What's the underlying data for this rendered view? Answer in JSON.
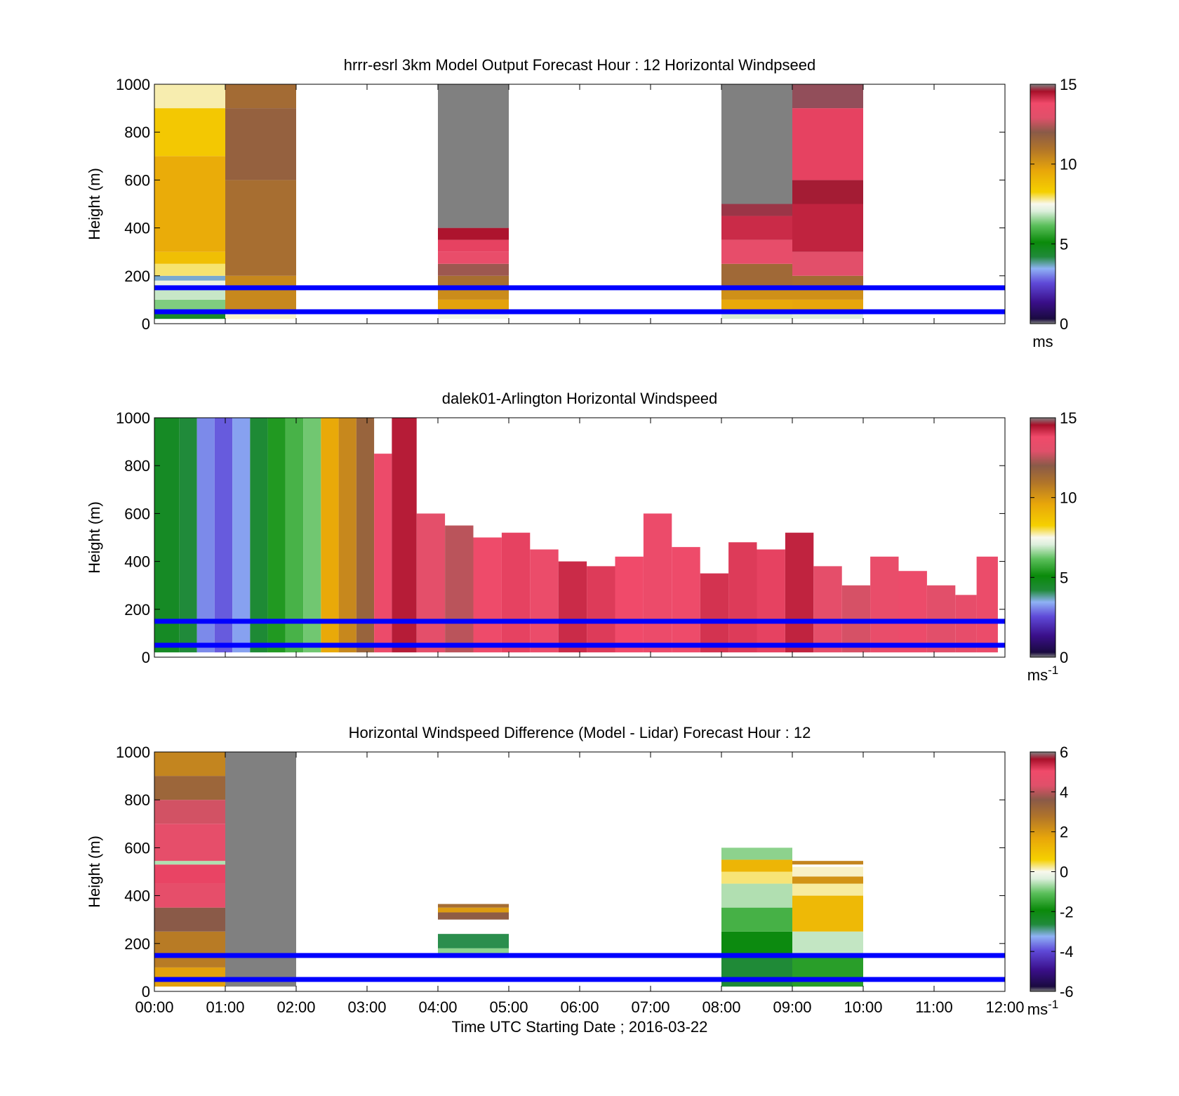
{
  "figure": {
    "xlabel": "Time UTC  Starting Date ; 2016-03-22",
    "x_ticks": [
      "00:00",
      "01:00",
      "02:00",
      "03:00",
      "04:00",
      "05:00",
      "06:00",
      "07:00",
      "08:00",
      "09:00",
      "10:00",
      "11:00",
      "12:00"
    ],
    "guide_lines_height_m": [
      50,
      150
    ],
    "guide_line_color": "#0000ff",
    "nodata_color": "#808080"
  },
  "chart_data": [
    {
      "type": "heatmap",
      "title": "hrrr-esrl 3km Model Output   Forecast Hour : 12 Horizontal Windpseed",
      "ylabel": "Height (m)",
      "ylim": [
        0,
        1000
      ],
      "y_ticks": [
        "0",
        "200",
        "400",
        "600",
        "800",
        "1000"
      ],
      "xlim_hours": [
        0,
        12
      ],
      "colorbar": {
        "range": [
          0,
          15
        ],
        "ticks": [
          "0",
          "5",
          "10",
          "15"
        ],
        "unit": "ms",
        "unit_sup": ""
      },
      "columns": [
        {
          "start_hour": 0,
          "end_hour": 1,
          "cells": [
            {
              "from": 20,
              "to": 40,
              "value": 4.5
            },
            {
              "from": 40,
              "to": 60,
              "value": 5.8
            },
            {
              "from": 60,
              "to": 100,
              "value": 6.4
            },
            {
              "from": 100,
              "to": 150,
              "value": 6.9
            },
            {
              "from": 150,
              "to": 180,
              "value": 7.3
            },
            {
              "from": 180,
              "to": 200,
              "value": 3.6
            },
            {
              "from": 200,
              "to": 250,
              "value": 7.9
            },
            {
              "from": 250,
              "to": 300,
              "value": 8.8
            },
            {
              "from": 300,
              "to": 700,
              "value": 9.4
            },
            {
              "from": 700,
              "to": 900,
              "value": 8.5
            },
            {
              "from": 900,
              "to": 1000,
              "value": 7.7
            }
          ]
        },
        {
          "start_hour": 1,
          "end_hour": 2,
          "cells": [
            {
              "from": 20,
              "to": 60,
              "value": 7.6
            },
            {
              "from": 60,
              "to": 200,
              "value": 10.4
            },
            {
              "from": 200,
              "to": 600,
              "value": 11.2
            },
            {
              "from": 600,
              "to": 900,
              "value": 11.7
            },
            {
              "from": 900,
              "to": 1000,
              "value": 11.3
            }
          ]
        },
        {
          "start_hour": 4,
          "end_hour": 5,
          "cells": [
            {
              "from": 20,
              "to": 50,
              "value": 7.4
            },
            {
              "from": 50,
              "to": 100,
              "value": 9.7
            },
            {
              "from": 100,
              "to": 150,
              "value": 10.3
            },
            {
              "from": 150,
              "to": 200,
              "value": 11.2
            },
            {
              "from": 200,
              "to": 250,
              "value": 12.2
            },
            {
              "from": 250,
              "to": 300,
              "value": 13.4
            },
            {
              "from": 300,
              "to": 350,
              "value": 13.9
            },
            {
              "from": 350,
              "to": 400,
              "value": 14.5
            },
            {
              "from": 400,
              "to": 1000,
              "value": null
            }
          ]
        },
        {
          "start_hour": 8,
          "end_hour": 9,
          "cells": [
            {
              "from": 20,
              "to": 50,
              "value": 7.0
            },
            {
              "from": 50,
              "to": 100,
              "value": 9.5
            },
            {
              "from": 100,
              "to": 150,
              "value": 10.2
            },
            {
              "from": 150,
              "to": 250,
              "value": 11.4
            },
            {
              "from": 250,
              "to": 350,
              "value": 13.3
            },
            {
              "from": 350,
              "to": 450,
              "value": 14.2
            },
            {
              "from": 450,
              "to": 500,
              "value": 14.7
            },
            {
              "from": 500,
              "to": 1000,
              "value": null
            }
          ]
        },
        {
          "start_hour": 9,
          "end_hour": 10,
          "cells": [
            {
              "from": 20,
              "to": 50,
              "value": 7.1
            },
            {
              "from": 50,
              "to": 100,
              "value": 9.6
            },
            {
              "from": 100,
              "to": 150,
              "value": 10.2
            },
            {
              "from": 150,
              "to": 200,
              "value": 11.3
            },
            {
              "from": 200,
              "to": 300,
              "value": 13.0
            },
            {
              "from": 300,
              "to": 500,
              "value": 14.3
            },
            {
              "from": 500,
              "to": 600,
              "value": 14.6
            },
            {
              "from": 600,
              "to": 900,
              "value": 13.9
            },
            {
              "from": 900,
              "to": 1000,
              "value": 14.8
            }
          ]
        }
      ]
    },
    {
      "type": "heatmap",
      "title": "dalek01-Arlington  Horizontal Windspeed",
      "ylabel": "Height (m)",
      "ylim": [
        0,
        1000
      ],
      "y_ticks": [
        "0",
        "200",
        "400",
        "600",
        "800",
        "1000"
      ],
      "xlim_hours": [
        0,
        12
      ],
      "colorbar": {
        "range": [
          0,
          15
        ],
        "ticks": [
          "0",
          "5",
          "10",
          "15"
        ],
        "unit": "ms",
        "unit_sup": "-1"
      },
      "columns": [
        {
          "start_hour": 0.0,
          "end_hour": 0.35,
          "cells": [
            {
              "from": 20,
              "to": 1000,
              "value": 4.6
            }
          ]
        },
        {
          "start_hour": 0.35,
          "end_hour": 0.6,
          "cells": [
            {
              "from": 20,
              "to": 1000,
              "value": 4.2
            }
          ]
        },
        {
          "start_hour": 0.6,
          "end_hour": 0.85,
          "cells": [
            {
              "from": 20,
              "to": 1000,
              "value": 3.1
            }
          ]
        },
        {
          "start_hour": 0.85,
          "end_hour": 1.1,
          "cells": [
            {
              "from": 20,
              "to": 1000,
              "value": 2.7
            }
          ]
        },
        {
          "start_hour": 1.1,
          "end_hour": 1.35,
          "cells": [
            {
              "from": 20,
              "to": 1000,
              "value": 3.3
            }
          ]
        },
        {
          "start_hour": 1.35,
          "end_hour": 1.6,
          "cells": [
            {
              "from": 20,
              "to": 1000,
              "value": 4.3
            }
          ]
        },
        {
          "start_hour": 1.6,
          "end_hour": 1.85,
          "cells": [
            {
              "from": 20,
              "to": 1000,
              "value": 5.4
            }
          ]
        },
        {
          "start_hour": 1.85,
          "end_hour": 2.1,
          "cells": [
            {
              "from": 20,
              "to": 1000,
              "value": 5.9
            }
          ]
        },
        {
          "start_hour": 2.1,
          "end_hour": 2.35,
          "cells": [
            {
              "from": 20,
              "to": 1000,
              "value": 6.3
            }
          ]
        },
        {
          "start_hour": 2.35,
          "end_hour": 2.6,
          "cells": [
            {
              "from": 20,
              "to": 1000,
              "value": 9.5
            }
          ]
        },
        {
          "start_hour": 2.6,
          "end_hour": 2.85,
          "cells": [
            {
              "from": 20,
              "to": 1000,
              "value": 10.4
            }
          ]
        },
        {
          "start_hour": 2.85,
          "end_hour": 3.1,
          "cells": [
            {
              "from": 20,
              "to": 1000,
              "value": 11.6
            }
          ]
        },
        {
          "start_hour": 3.1,
          "end_hour": 3.35,
          "cells": [
            {
              "from": 20,
              "to": 850,
              "value": 13.6
            }
          ]
        },
        {
          "start_hour": 3.35,
          "end_hour": 3.7,
          "cells": [
            {
              "from": 20,
              "to": 1000,
              "value": 14.4
            }
          ]
        },
        {
          "start_hour": 3.7,
          "end_hour": 4.1,
          "cells": [
            {
              "from": 20,
              "to": 600,
              "value": 13.1
            }
          ]
        },
        {
          "start_hour": 4.1,
          "end_hour": 4.5,
          "cells": [
            {
              "from": 20,
              "to": 550,
              "value": 12.5
            }
          ]
        },
        {
          "start_hour": 4.5,
          "end_hour": 4.9,
          "cells": [
            {
              "from": 20,
              "to": 500,
              "value": 13.7
            }
          ]
        },
        {
          "start_hour": 4.9,
          "end_hour": 5.3,
          "cells": [
            {
              "from": 20,
              "to": 520,
              "value": 13.9
            }
          ]
        },
        {
          "start_hour": 5.3,
          "end_hour": 5.7,
          "cells": [
            {
              "from": 20,
              "to": 450,
              "value": 13.5
            }
          ]
        },
        {
          "start_hour": 5.7,
          "end_hour": 6.1,
          "cells": [
            {
              "from": 20,
              "to": 400,
              "value": 14.2
            }
          ]
        },
        {
          "start_hour": 6.1,
          "end_hour": 6.5,
          "cells": [
            {
              "from": 20,
              "to": 380,
              "value": 14.0
            }
          ]
        },
        {
          "start_hour": 6.5,
          "end_hour": 6.9,
          "cells": [
            {
              "from": 20,
              "to": 420,
              "value": 13.8
            }
          ]
        },
        {
          "start_hour": 6.9,
          "end_hour": 7.3,
          "cells": [
            {
              "from": 20,
              "to": 600,
              "value": 13.6
            }
          ]
        },
        {
          "start_hour": 7.3,
          "end_hour": 7.7,
          "cells": [
            {
              "from": 20,
              "to": 460,
              "value": 13.7
            }
          ]
        },
        {
          "start_hour": 7.7,
          "end_hour": 8.1,
          "cells": [
            {
              "from": 20,
              "to": 350,
              "value": 14.1
            }
          ]
        },
        {
          "start_hour": 8.1,
          "end_hour": 8.5,
          "cells": [
            {
              "from": 20,
              "to": 480,
              "value": 14.0
            }
          ]
        },
        {
          "start_hour": 8.5,
          "end_hour": 8.9,
          "cells": [
            {
              "from": 20,
              "to": 450,
              "value": 13.9
            }
          ]
        },
        {
          "start_hour": 8.9,
          "end_hour": 9.3,
          "cells": [
            {
              "from": 20,
              "to": 520,
              "value": 14.3
            }
          ]
        },
        {
          "start_hour": 9.3,
          "end_hour": 9.7,
          "cells": [
            {
              "from": 20,
              "to": 380,
              "value": 13.2
            }
          ]
        },
        {
          "start_hour": 9.7,
          "end_hour": 10.1,
          "cells": [
            {
              "from": 20,
              "to": 300,
              "value": 12.8
            }
          ]
        },
        {
          "start_hour": 10.1,
          "end_hour": 10.5,
          "cells": [
            {
              "from": 20,
              "to": 420,
              "value": 13.4
            }
          ]
        },
        {
          "start_hour": 10.5,
          "end_hour": 10.9,
          "cells": [
            {
              "from": 20,
              "to": 360,
              "value": 13.6
            }
          ]
        },
        {
          "start_hour": 10.9,
          "end_hour": 11.3,
          "cells": [
            {
              "from": 20,
              "to": 300,
              "value": 13.0
            }
          ]
        },
        {
          "start_hour": 11.3,
          "end_hour": 11.6,
          "cells": [
            {
              "from": 20,
              "to": 260,
              "value": 13.3
            }
          ]
        },
        {
          "start_hour": 11.6,
          "end_hour": 11.9,
          "cells": [
            {
              "from": 20,
              "to": 420,
              "value": 13.5
            }
          ]
        }
      ]
    },
    {
      "type": "heatmap",
      "title": "Horizontal Windspeed Difference (Model - Lidar) Forecast Hour : 12",
      "ylabel": "Height (m)",
      "ylim": [
        0,
        1000
      ],
      "y_ticks": [
        "0",
        "200",
        "400",
        "600",
        "800",
        "1000"
      ],
      "xlim_hours": [
        0,
        12
      ],
      "colorbar": {
        "range": [
          -6,
          6
        ],
        "ticks": [
          "-6",
          "-4",
          "-2",
          "0",
          "2",
          "4",
          "6"
        ],
        "unit": "ms",
        "unit_sup": "-1"
      },
      "columns": [
        {
          "start_hour": 0,
          "end_hour": 1,
          "cells": [
            {
              "from": 20,
              "to": 100,
              "value": 1.8
            },
            {
              "from": 100,
              "to": 250,
              "value": 2.6
            },
            {
              "from": 250,
              "to": 350,
              "value": 3.6
            },
            {
              "from": 350,
              "to": 450,
              "value": 4.6
            },
            {
              "from": 450,
              "to": 530,
              "value": 5.1
            },
            {
              "from": 530,
              "to": 545,
              "value": -0.6
            },
            {
              "from": 545,
              "to": 700,
              "value": 4.6
            },
            {
              "from": 700,
              "to": 800,
              "value": 4.2
            },
            {
              "from": 800,
              "to": 900,
              "value": 3.2
            },
            {
              "from": 900,
              "to": 1000,
              "value": 2.4
            }
          ]
        },
        {
          "start_hour": 1,
          "end_hour": 2,
          "cells": [
            {
              "from": 20,
              "to": 1000,
              "value": null
            }
          ]
        },
        {
          "start_hour": 4,
          "end_hour": 5,
          "cells": [
            {
              "from": 140,
              "to": 180,
              "value": -0.8
            },
            {
              "from": 180,
              "to": 240,
              "value": -2.7
            },
            {
              "from": 300,
              "to": 330,
              "value": 3.5
            },
            {
              "from": 330,
              "to": 350,
              "value": 1.9
            },
            {
              "from": 350,
              "to": 365,
              "value": 3.0
            }
          ]
        },
        {
          "start_hour": 8,
          "end_hour": 9,
          "cells": [
            {
              "from": 20,
              "to": 150,
              "value": -2.6
            },
            {
              "from": 150,
              "to": 250,
              "value": -2.0
            },
            {
              "from": 250,
              "to": 350,
              "value": -1.3
            },
            {
              "from": 350,
              "to": 450,
              "value": -0.6
            },
            {
              "from": 450,
              "to": 500,
              "value": 0.3
            },
            {
              "from": 500,
              "to": 550,
              "value": 1.3
            },
            {
              "from": 550,
              "to": 600,
              "value": -0.8
            }
          ]
        },
        {
          "start_hour": 9,
          "end_hour": 10,
          "cells": [
            {
              "from": 20,
              "to": 150,
              "value": -1.6
            },
            {
              "from": 150,
              "to": 250,
              "value": -0.5
            },
            {
              "from": 250,
              "to": 400,
              "value": 1.2
            },
            {
              "from": 400,
              "to": 450,
              "value": 0.2
            },
            {
              "from": 450,
              "to": 480,
              "value": 2.1
            },
            {
              "from": 480,
              "to": 520,
              "value": 0.1
            },
            {
              "from": 530,
              "to": 545,
              "value": 2.4
            }
          ]
        }
      ]
    }
  ]
}
